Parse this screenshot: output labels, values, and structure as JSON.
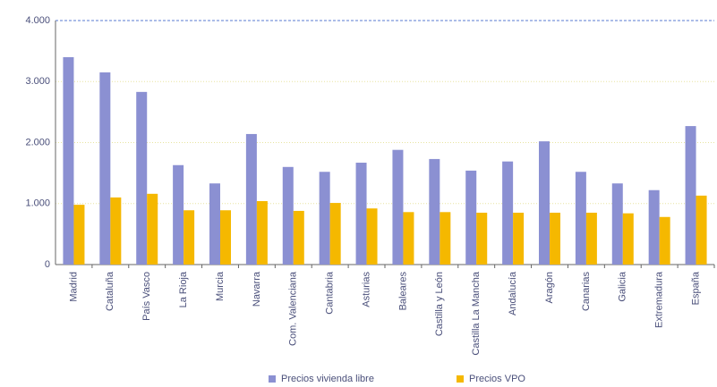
{
  "chart_data": {
    "type": "bar",
    "categories": [
      "Madrid",
      "Cataluña",
      "País Vasco",
      "La Rioja",
      "Murcia",
      "Navarra",
      "Com. Valenciana",
      "Cantabria",
      "Asturias",
      "Baleares",
      "Castilla y León",
      "Castilla La Mancha",
      "Andalucía",
      "Aragón",
      "Canarias",
      "Galicia",
      "Extremadura",
      "España"
    ],
    "series": [
      {
        "name": "Precios vivienda libre",
        "color": "#8b90d2",
        "values": [
          3400,
          3150,
          2830,
          1630,
          1330,
          2140,
          1600,
          1520,
          1670,
          1880,
          1730,
          1540,
          1690,
          2020,
          1520,
          1330,
          1220,
          2270
        ]
      },
      {
        "name": "Precios VPO",
        "color": "#f5b800",
        "values": [
          980,
          1100,
          1160,
          890,
          890,
          1040,
          880,
          1010,
          920,
          860,
          860,
          850,
          850,
          850,
          850,
          840,
          780,
          1130
        ]
      }
    ],
    "ylim": [
      0,
      4000
    ],
    "yticks": [
      0,
      {
        "value": 1000,
        "label": "1.000"
      },
      {
        "value": 2000,
        "label": "2.000"
      },
      {
        "value": 3000,
        "label": "3.000"
      },
      {
        "value": 4000,
        "label": "4.000"
      }
    ],
    "grid": true,
    "legend": "bottom"
  }
}
